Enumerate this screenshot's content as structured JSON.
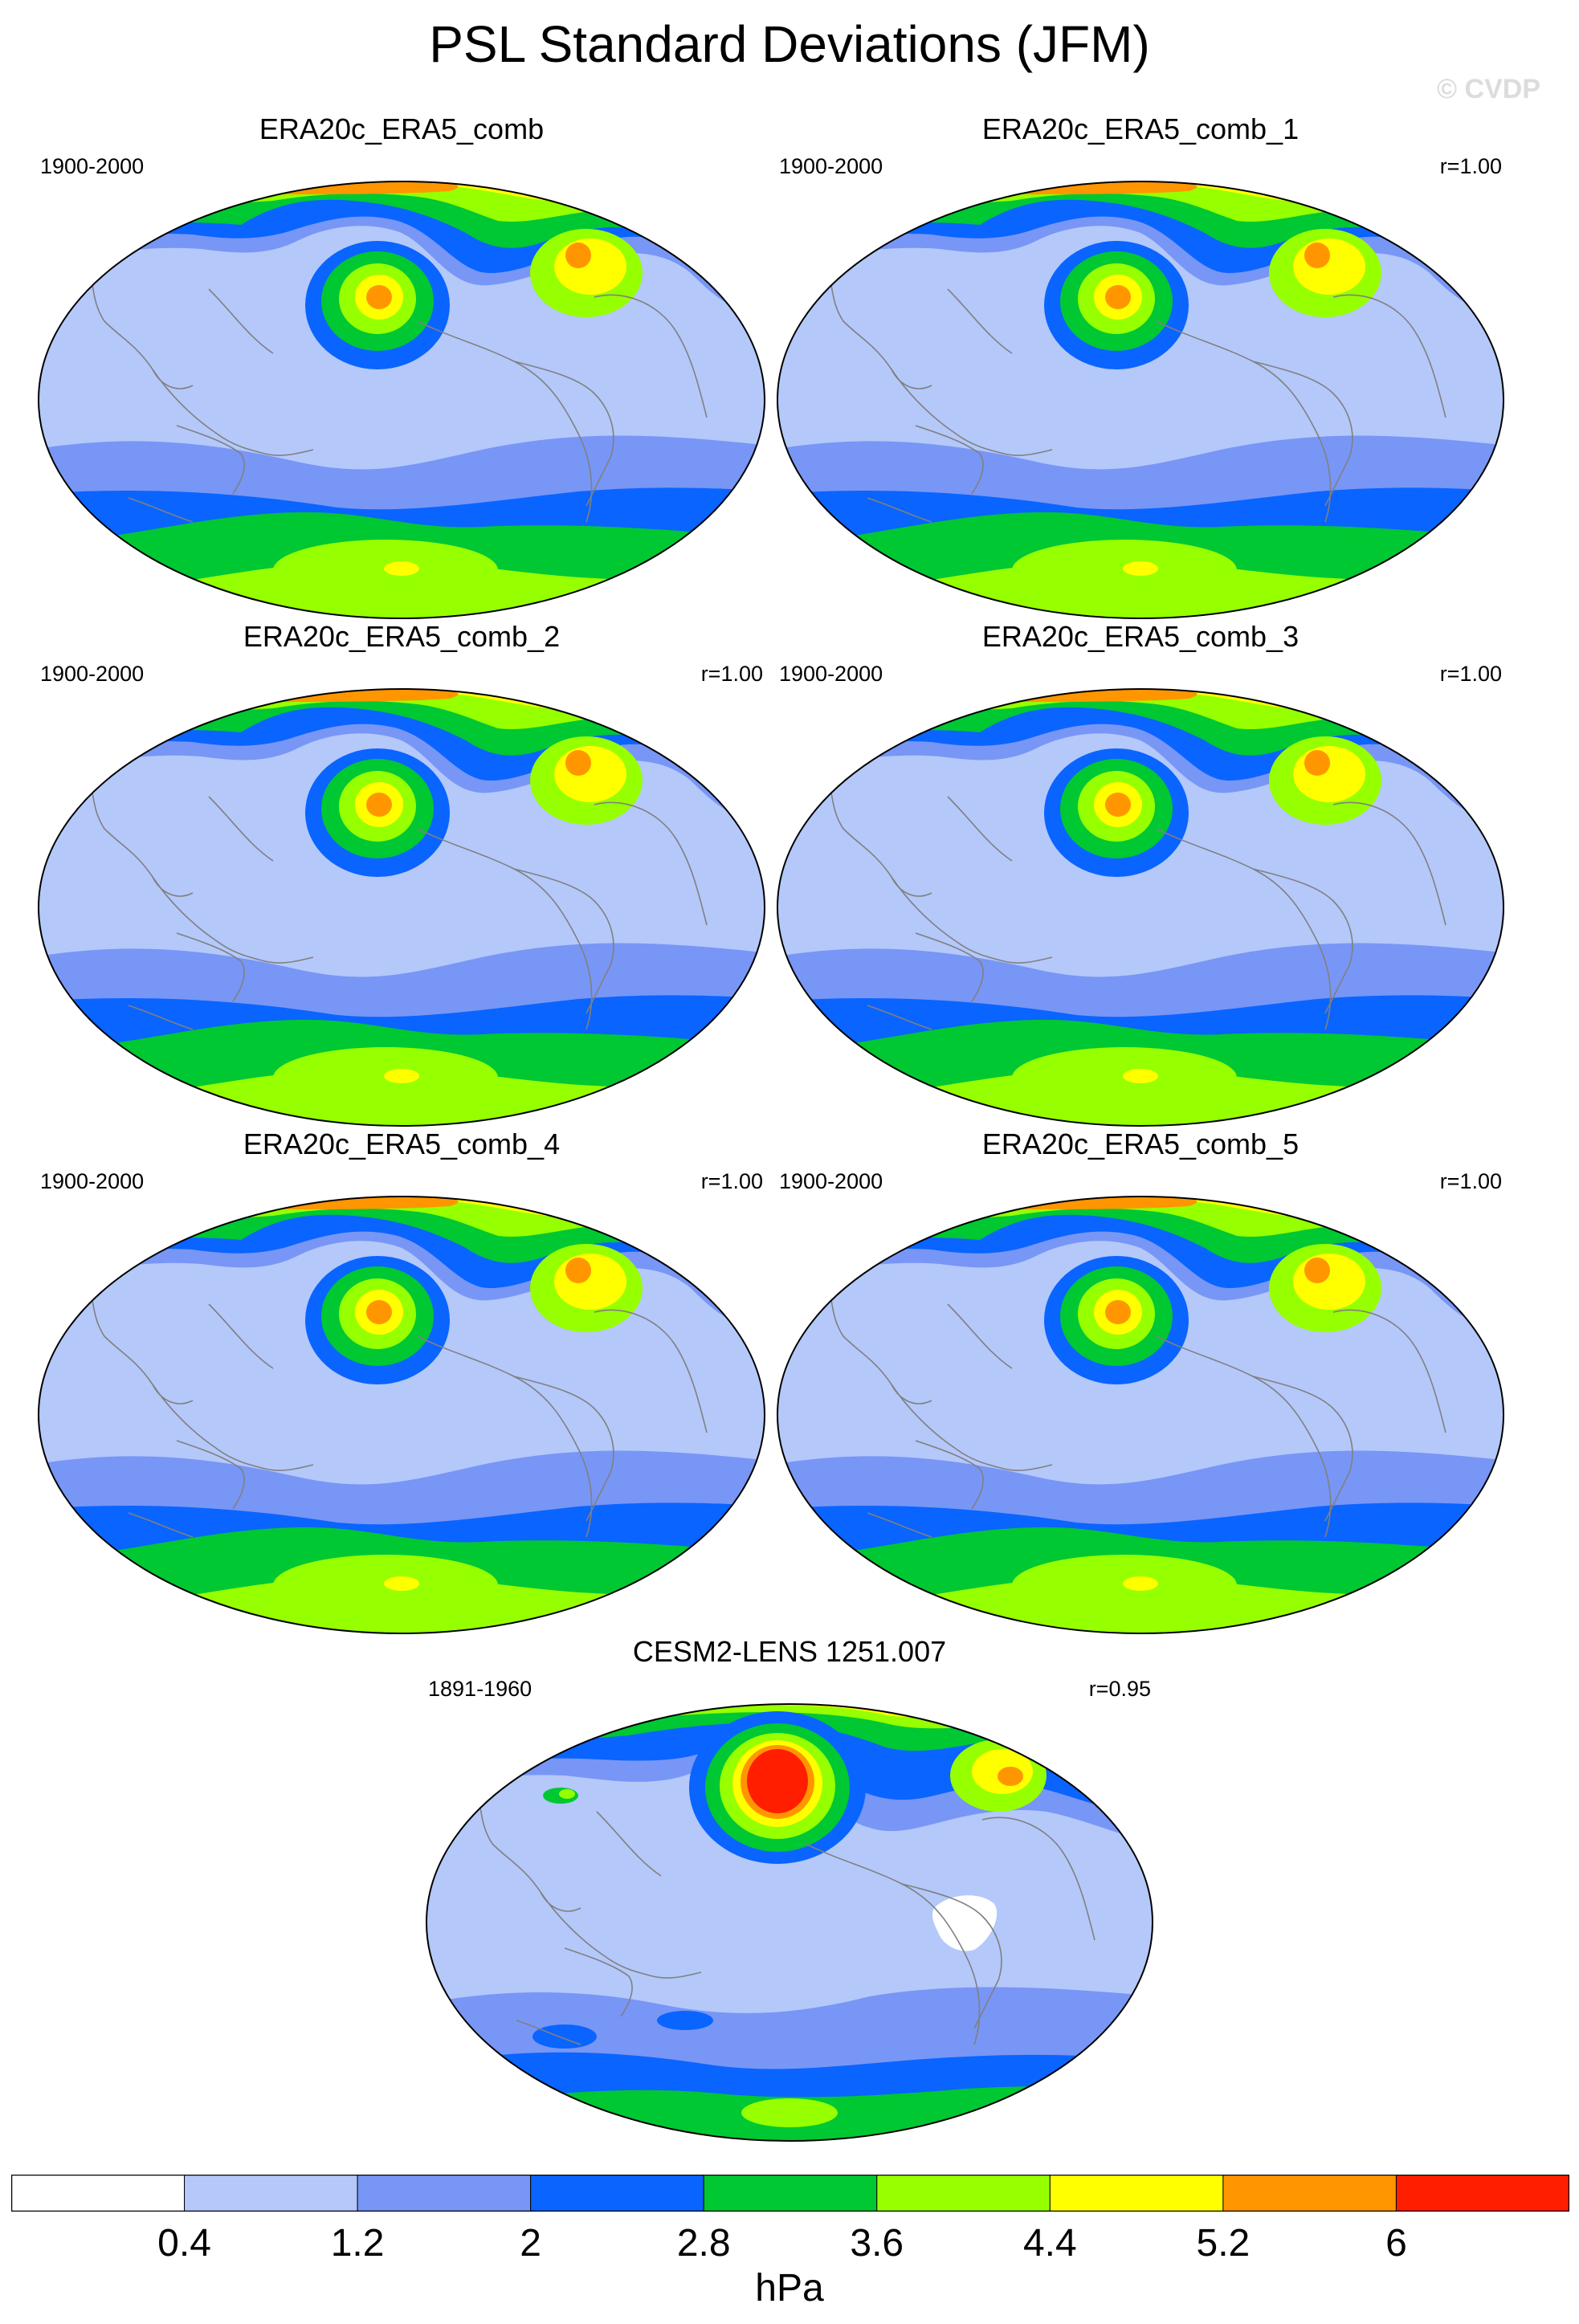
{
  "title": "PSL Standard Deviations (JFM)",
  "watermark": "© CVDP",
  "panels": [
    {
      "title": "ERA20c_ERA5_comb",
      "years": "1900-2000",
      "r": ""
    },
    {
      "title": "ERA20c_ERA5_comb_1",
      "years": "1900-2000",
      "r": "r=1.00"
    },
    {
      "title": "ERA20c_ERA5_comb_2",
      "years": "1900-2000",
      "r": "r=1.00"
    },
    {
      "title": "ERA20c_ERA5_comb_3",
      "years": "1900-2000",
      "r": "r=1.00"
    },
    {
      "title": "ERA20c_ERA5_comb_4",
      "years": "1900-2000",
      "r": "r=1.00"
    },
    {
      "title": "ERA20c_ERA5_comb_5",
      "years": "1900-2000",
      "r": "r=1.00"
    },
    {
      "title": "CESM2-LENS 1251.007",
      "years": "1891-1960",
      "r": "r=0.95"
    }
  ],
  "colorbar": {
    "units": "hPa",
    "labels": [
      "0.4",
      "1.2",
      "2",
      "2.8",
      "3.6",
      "4.4",
      "5.2",
      "6"
    ],
    "colors": [
      "#ffffff",
      "#b4c8fa",
      "#7896f5",
      "#0a64ff",
      "#00c832",
      "#96ff00",
      "#ffff00",
      "#ff9600",
      "#ff1e00"
    ]
  },
  "map_colors": {
    "ocean_base": "#b4c8fa",
    "coast": "#808080"
  }
}
